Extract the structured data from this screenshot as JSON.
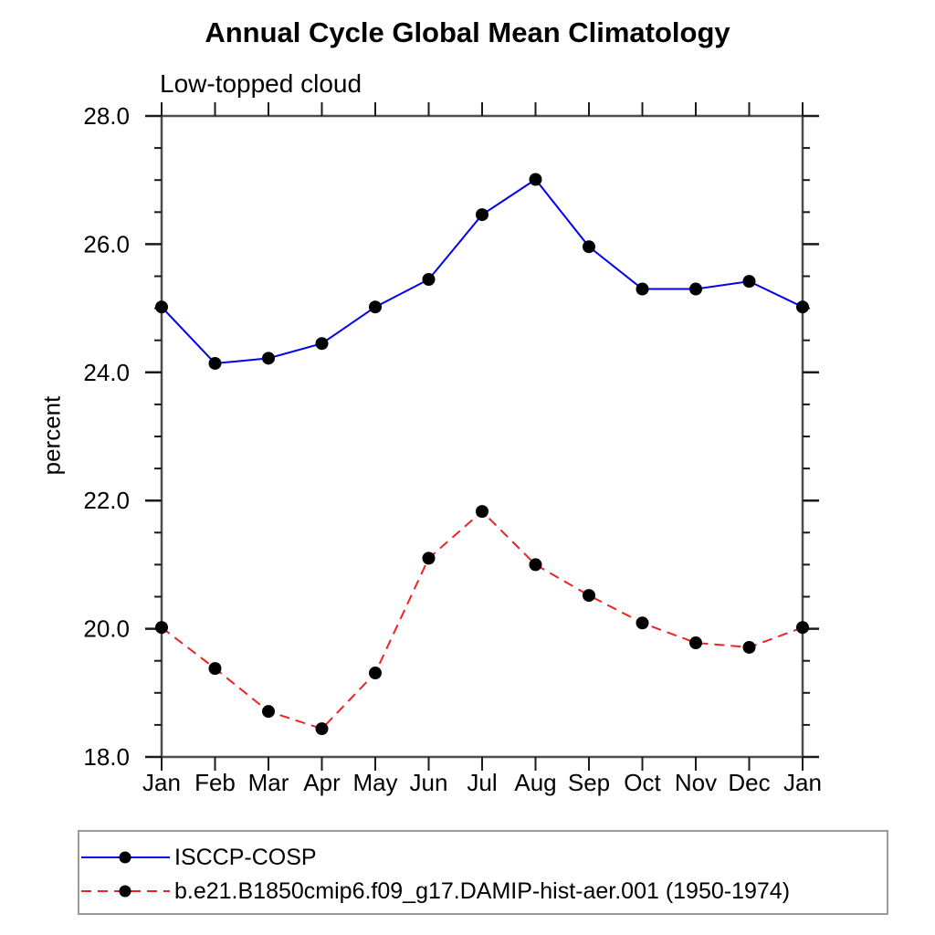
{
  "chart_data": {
    "type": "line",
    "title": "Annual Cycle Global Mean Climatology",
    "subtitle": "Low-topped cloud",
    "ylabel": "percent",
    "categories": [
      "Jan",
      "Feb",
      "Mar",
      "Apr",
      "May",
      "Jun",
      "Jul",
      "Aug",
      "Sep",
      "Oct",
      "Nov",
      "Dec",
      "Jan"
    ],
    "ylim": [
      18.0,
      28.0
    ],
    "y_major_step": 2.0,
    "y_minor_step": 0.5,
    "grid": false,
    "legend_position": "bottom-left-boxed",
    "series": [
      {
        "name": "ISCCP-COSP",
        "color": "#0000ee",
        "line_style": "solid",
        "marker": "filled-circle",
        "marker_color": "#000000",
        "values": [
          25.02,
          24.14,
          24.22,
          24.45,
          25.02,
          25.45,
          26.46,
          27.01,
          25.96,
          25.3,
          25.3,
          25.42,
          25.02
        ]
      },
      {
        "name": "b.e21.B1850cmip6.f09_g17.DAMIP-hist-aer.001 (1950-1974)",
        "color": "#ee2222",
        "line_style": "dashed",
        "marker": "filled-circle",
        "marker_color": "#000000",
        "values": [
          20.02,
          19.38,
          18.71,
          18.44,
          19.31,
          21.1,
          21.83,
          21.0,
          20.52,
          20.09,
          19.78,
          19.71,
          20.02
        ]
      }
    ]
  },
  "colors": {
    "background": "#ffffff",
    "axis_frame": "#4d4d4d",
    "tick": "#1a1a1a",
    "text": "#000000",
    "legend_border": "#9a9a9a"
  }
}
